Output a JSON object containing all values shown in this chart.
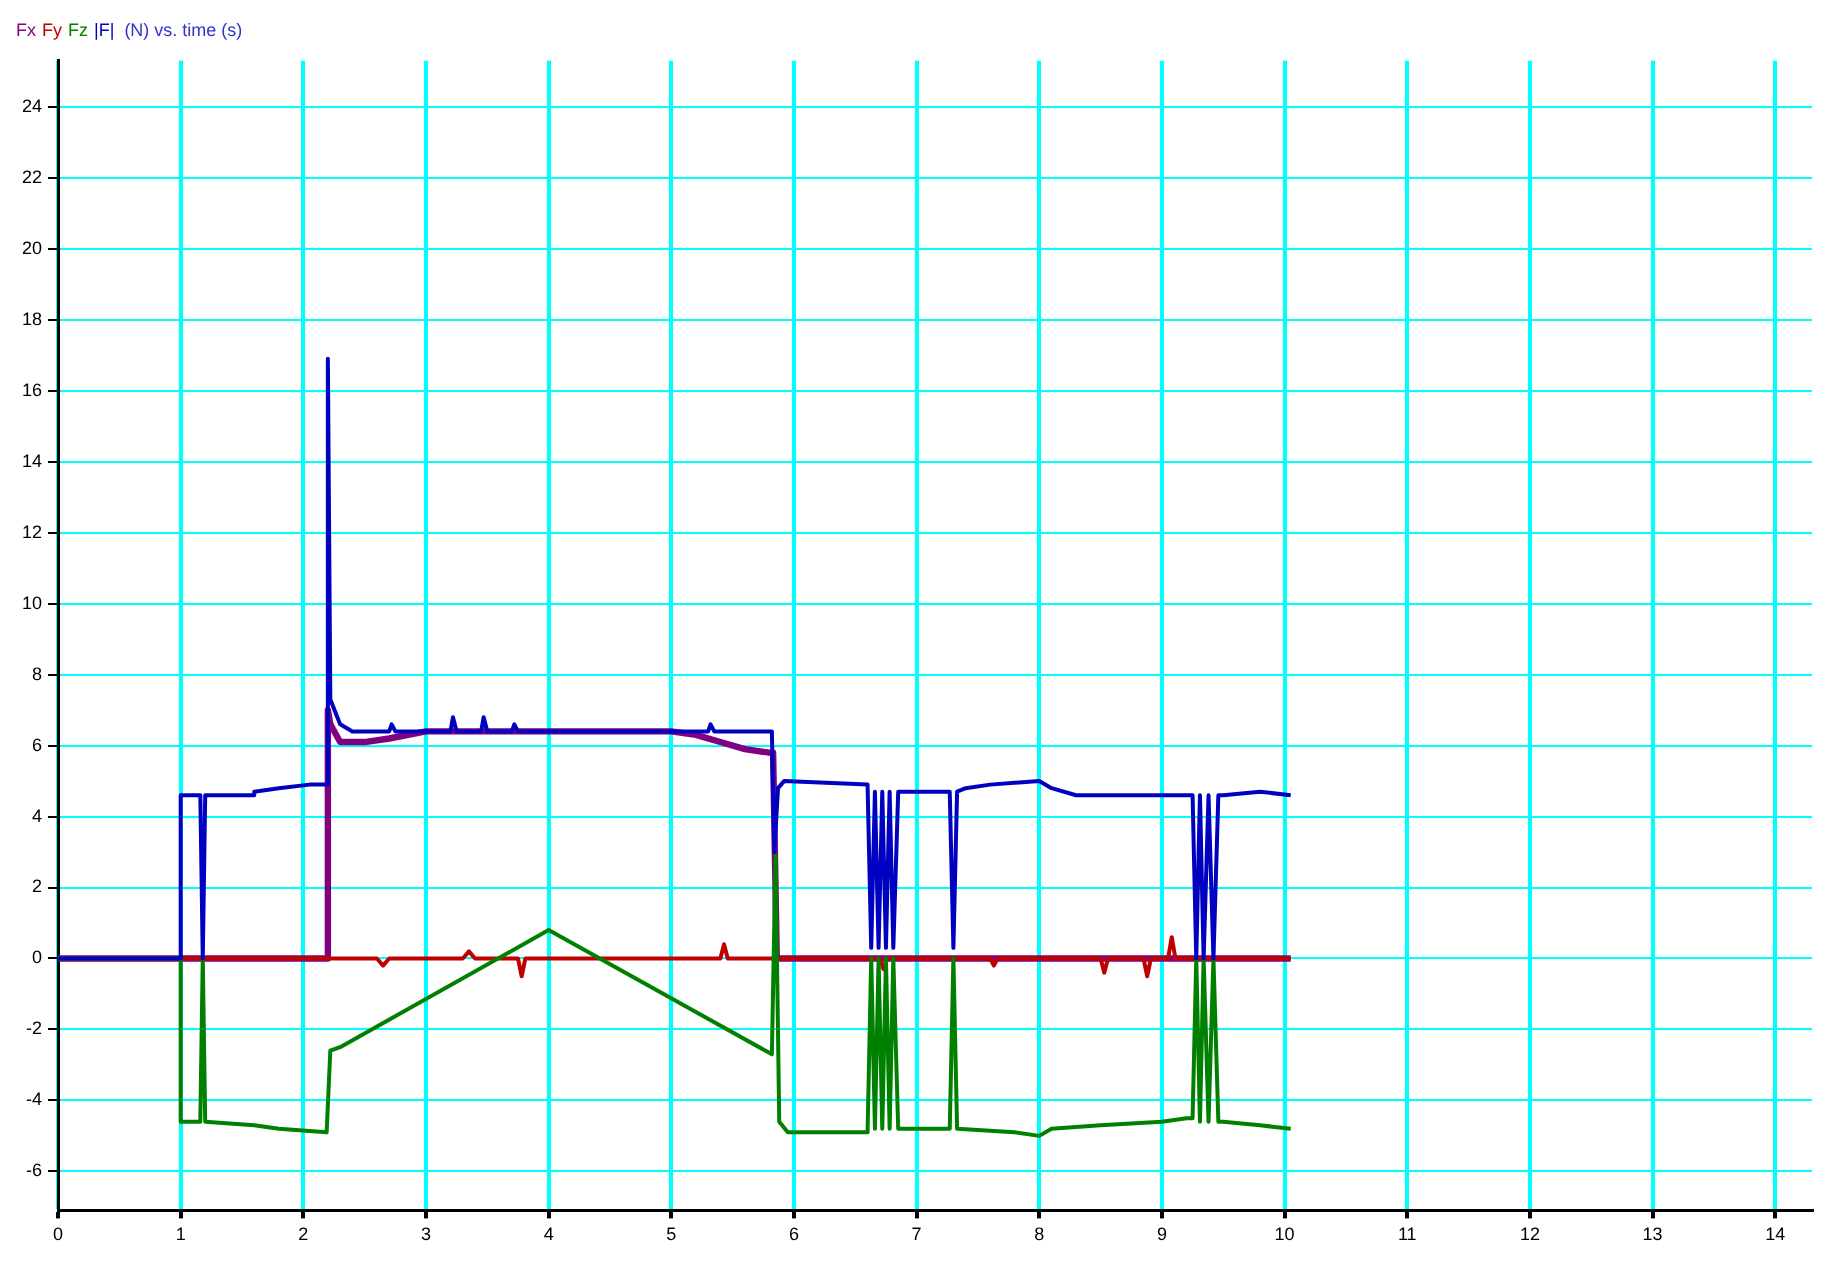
{
  "chart_data": {
    "type": "line",
    "title": "(N) vs. time (s)",
    "legend": "top left",
    "grid": true,
    "marker": "none",
    "line_style": "solid",
    "xlim": [
      0,
      14.3
    ],
    "xticks": [
      0,
      1,
      2,
      3,
      4,
      5,
      6,
      7,
      8,
      9,
      10,
      11,
      12,
      13,
      14
    ],
    "ylim": [
      -7.1,
      25.3
    ],
    "yticks": [
      -6,
      -4,
      -2,
      0,
      2,
      4,
      6,
      8,
      10,
      12,
      14,
      16,
      18,
      20,
      22,
      24
    ],
    "series": [
      {
        "name": "Fx",
        "color": "#800080",
        "x": [
          0,
          2.19,
          2.2,
          2.22,
          2.3,
          2.5,
          2.7,
          3.0,
          4.0,
          5.0,
          5.2,
          5.4,
          5.6,
          5.8,
          5.83,
          5.86,
          10.05
        ],
        "values": [
          0,
          0,
          7.0,
          6.6,
          6.1,
          6.1,
          6.2,
          6.4,
          6.4,
          6.4,
          6.3,
          6.1,
          5.9,
          5.8,
          5.8,
          0,
          0
        ]
      },
      {
        "name": "Fy",
        "color": "#c00000",
        "x": [
          0,
          2.6,
          2.65,
          2.7,
          3.3,
          3.35,
          3.4,
          3.75,
          3.78,
          3.81,
          5.4,
          5.43,
          5.46,
          6.7,
          6.73,
          6.76,
          7.6,
          7.63,
          7.66,
          8.5,
          8.53,
          8.56,
          8.85,
          8.88,
          8.91,
          9.05,
          9.08,
          9.11,
          10.05
        ],
        "values": [
          0,
          0,
          -0.2,
          0,
          0,
          0.2,
          0,
          0,
          -0.5,
          0,
          0,
          0.4,
          0,
          0,
          -0.3,
          0,
          0,
          -0.2,
          0,
          0,
          -0.4,
          0,
          0,
          -0.5,
          0,
          0,
          0.6,
          0,
          0
        ]
      },
      {
        "name": "Fz",
        "color": "#008000",
        "x": [
          0,
          1.0,
          1.0,
          1.16,
          1.18,
          1.2,
          1.6,
          1.8,
          2.19,
          2.22,
          2.3,
          4.0,
          5.82,
          5.85,
          5.88,
          5.95,
          6.6,
          6.63,
          6.66,
          6.69,
          6.72,
          6.75,
          6.78,
          6.81,
          6.85,
          7.27,
          7.3,
          7.33,
          7.8,
          8.0,
          8.1,
          8.5,
          9.0,
          9.2,
          9.25,
          9.28,
          9.31,
          9.34,
          9.38,
          9.42,
          9.46,
          9.5,
          9.8,
          10.05
        ],
        "values": [
          0,
          0,
          -4.6,
          -4.6,
          0,
          -4.6,
          -4.7,
          -4.8,
          -4.9,
          -2.6,
          -2.5,
          0.8,
          -2.7,
          2.9,
          -4.6,
          -4.9,
          -4.9,
          0,
          -4.8,
          0,
          -4.8,
          0,
          -4.8,
          0,
          -4.8,
          -4.8,
          0,
          -4.8,
          -4.9,
          -5.0,
          -4.8,
          -4.7,
          -4.6,
          -4.5,
          -4.5,
          0,
          -4.6,
          0,
          -4.6,
          0,
          -4.6,
          -4.6,
          -4.7,
          -4.8
        ]
      },
      {
        "name": "|F|",
        "color": "#0000c0",
        "x": [
          0,
          1.0,
          1.0,
          1.16,
          1.18,
          1.2,
          1.6,
          1.6,
          1.8,
          2.05,
          2.19,
          2.2,
          2.22,
          2.3,
          2.4,
          2.7,
          2.72,
          2.75,
          3.2,
          3.22,
          3.25,
          3.45,
          3.47,
          3.5,
          3.7,
          3.72,
          3.75,
          5.3,
          5.32,
          5.35,
          5.82,
          5.84,
          5.87,
          5.92,
          6.6,
          6.63,
          6.66,
          6.69,
          6.72,
          6.75,
          6.78,
          6.81,
          6.85,
          7.27,
          7.3,
          7.33,
          7.4,
          7.6,
          8.0,
          8.1,
          8.3,
          9.25,
          9.28,
          9.31,
          9.34,
          9.38,
          9.42,
          9.46,
          9.5,
          9.8,
          10.05
        ],
        "values": [
          0,
          0,
          4.6,
          4.6,
          0,
          4.6,
          4.6,
          4.7,
          4.8,
          4.9,
          4.9,
          16.9,
          7.3,
          6.6,
          6.4,
          6.4,
          6.6,
          6.4,
          6.4,
          6.8,
          6.4,
          6.4,
          6.8,
          6.4,
          6.4,
          6.6,
          6.4,
          6.4,
          6.6,
          6.4,
          6.4,
          3.0,
          4.8,
          5.0,
          4.9,
          0.3,
          4.7,
          0.3,
          4.7,
          0.3,
          4.7,
          0.3,
          4.7,
          4.7,
          0.3,
          4.7,
          4.8,
          4.9,
          5.0,
          4.8,
          4.6,
          4.6,
          0,
          4.6,
          0,
          4.6,
          0,
          4.6,
          4.6,
          4.7,
          4.6
        ]
      }
    ]
  }
}
